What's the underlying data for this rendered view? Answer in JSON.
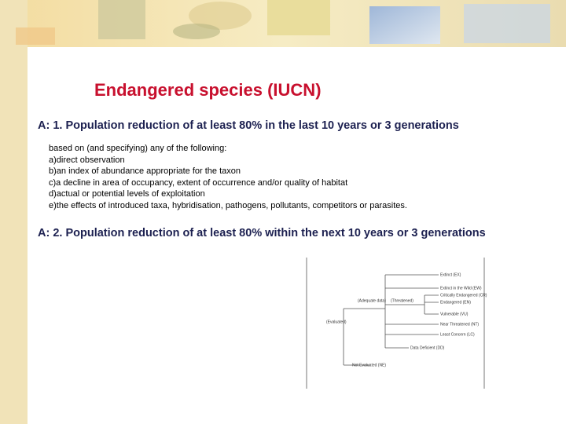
{
  "slide": {
    "title": "Endangered species (IUCN)",
    "criterion_a1": "A: 1. Population reduction of at least 80% in the last 10 years or 3 generations",
    "details": [
      "based on (and specifying) any of the following:",
      "a)direct observation",
      "b)an index of abundance appropriate for the taxon",
      "c)a decline in area of occupancy, extent of occurrence and/or quality of habitat",
      "d)actual or potential levels of exploitation",
      "e)the effects of introduced taxa, hybridisation, pathogens, pollutants, competitors or parasites."
    ],
    "criterion_a2": "A: 2. Population reduction of at least 80% within the next 10 years or 3 generations"
  },
  "diagram": {
    "groups": [
      "(Evaluated)",
      "(Adequate data)",
      "(Threatened)"
    ],
    "categories": [
      "Extinct (EX)",
      "Extinct in the Wild (EW)",
      "Critically Endangered (CR)",
      "Endangered (EN)",
      "Vulnerable (VU)",
      "Near Threatened (NT)",
      "Least Concern (LC)",
      "Data Deficient (DD)",
      "Not Evaluated (NE)"
    ]
  }
}
